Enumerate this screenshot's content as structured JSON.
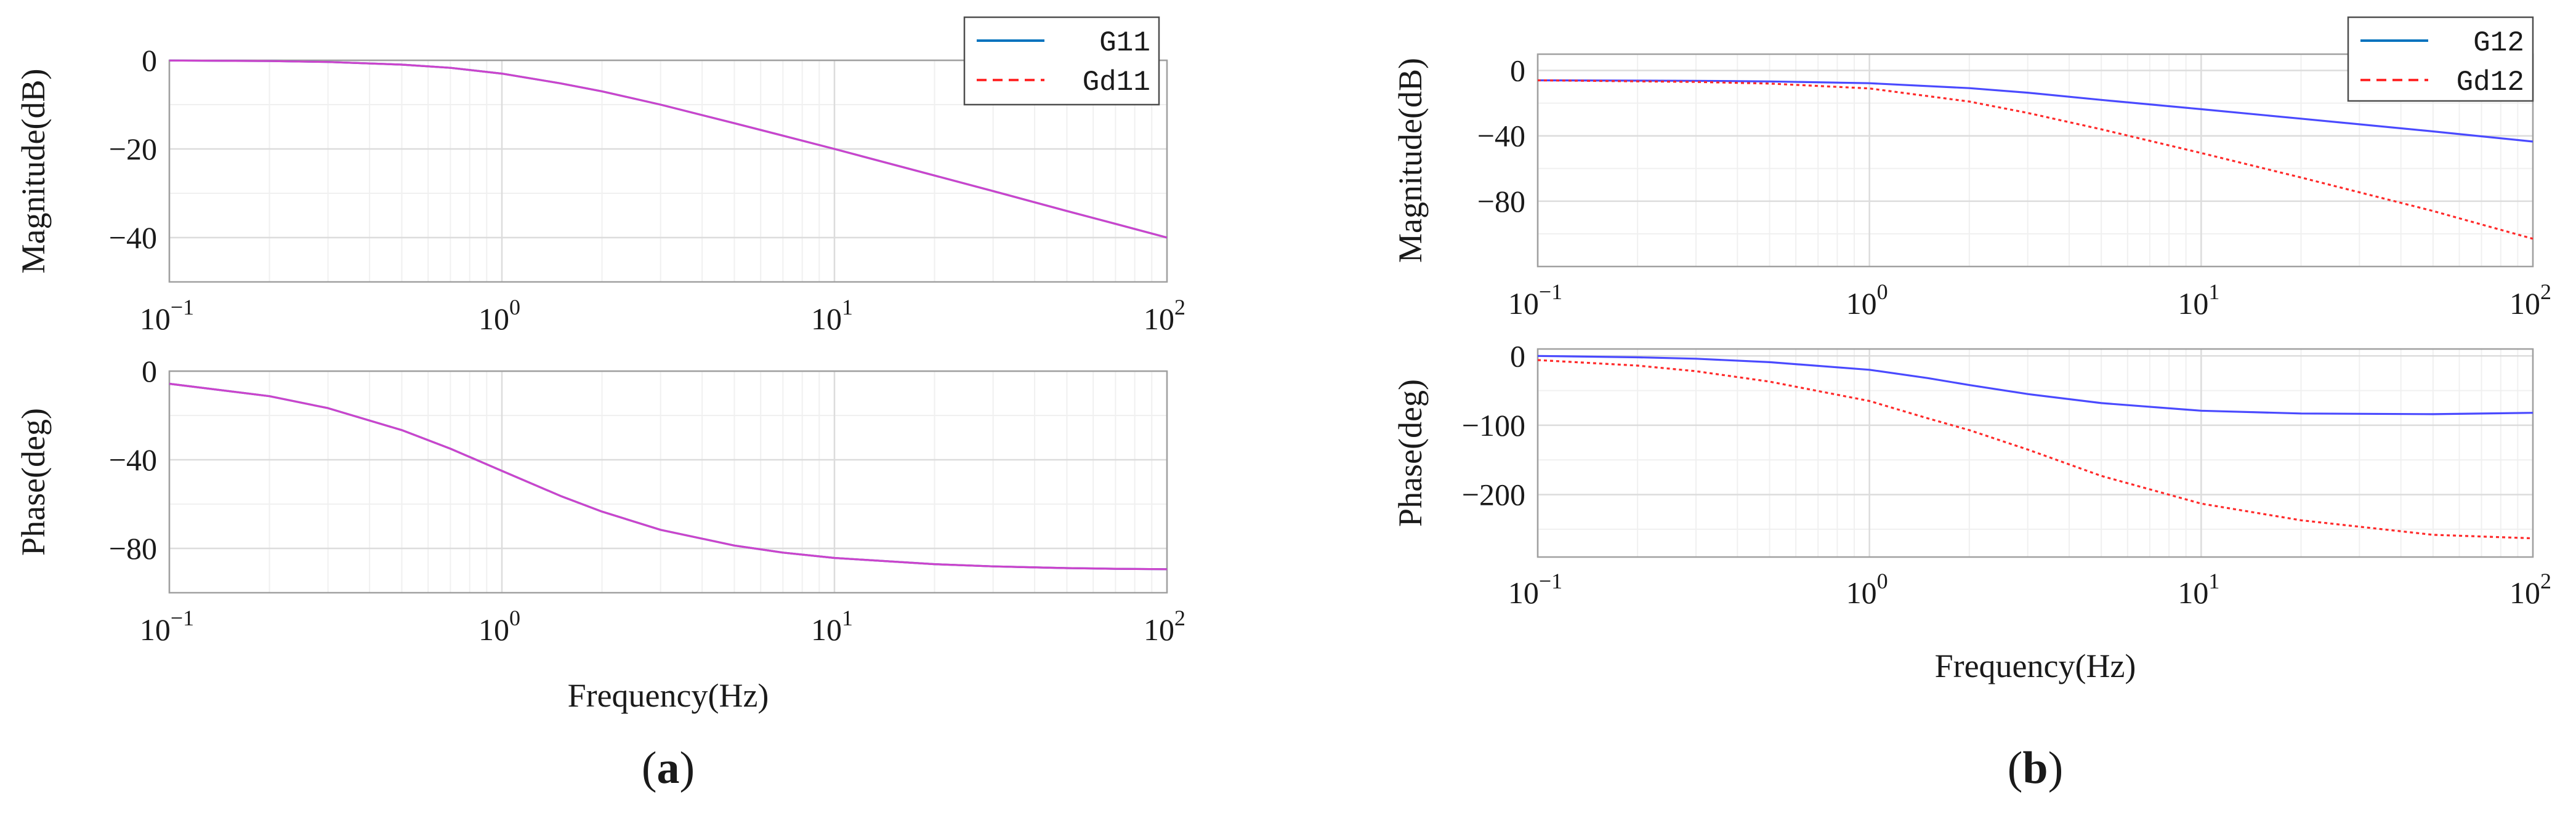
{
  "chart_data": [
    {
      "id": "a",
      "type": "line",
      "caption": {
        "open": "(",
        "letter": "a",
        "close": ")"
      },
      "xlabel": "Frequency(Hz)",
      "xscale": "log",
      "xlim": [
        0.1,
        100
      ],
      "xticks": [
        {
          "base": "10",
          "exp": "−1",
          "value": 0.1
        },
        {
          "base": "10",
          "exp": "0",
          "value": 1
        },
        {
          "base": "10",
          "exp": "1",
          "value": 10
        },
        {
          "base": "10",
          "exp": "2",
          "value": 100
        }
      ],
      "legend": {
        "placement": "top-right",
        "entries": [
          {
            "name": "G11",
            "color": "#0072BD",
            "style": "solid"
          },
          {
            "name": "Gd11",
            "color": "#ff2a2a",
            "style": "dashed"
          }
        ]
      },
      "panels": [
        {
          "id": "magnitude",
          "ylabel": "Magnitude(dB)",
          "ylim": [
            -50,
            0
          ],
          "yticks": [
            {
              "label": "0",
              "value": 0
            },
            {
              "label": "−20",
              "value": -20
            },
            {
              "label": "−40",
              "value": -40
            }
          ],
          "series": [
            {
              "name": "G11",
              "color": "#0072BD",
              "style": "solid",
              "x": [
                0.1,
                0.2,
                0.3,
                0.5,
                0.7,
                1,
                1.5,
                2,
                3,
                5,
                7,
                10,
                20,
                30,
                50,
                70,
                100
              ],
              "y": [
                -0.04,
                -0.17,
                -0.37,
                -0.97,
                -1.7,
                -3,
                -5.2,
                -7,
                -10,
                -14.2,
                -17,
                -20,
                -26,
                -29.5,
                -34,
                -36.9,
                -40
              ]
            },
            {
              "name": "Gd11",
              "color": "#cc44cc",
              "style": "solid",
              "x": [
                0.1,
                0.2,
                0.3,
                0.5,
                0.7,
                1,
                1.5,
                2,
                3,
                5,
                7,
                10,
                20,
                30,
                50,
                70,
                100
              ],
              "y": [
                -0.04,
                -0.17,
                -0.37,
                -0.97,
                -1.7,
                -3,
                -5.2,
                -7,
                -10,
                -14.2,
                -17,
                -20,
                -26,
                -29.5,
                -34,
                -36.9,
                -40
              ]
            }
          ]
        },
        {
          "id": "phase",
          "ylabel": "Phase(deg)",
          "ylim": [
            -100,
            0
          ],
          "yticks": [
            {
              "label": "0",
              "value": 0
            },
            {
              "label": "−40",
              "value": -40
            },
            {
              "label": "−80",
              "value": -80
            }
          ],
          "series": [
            {
              "name": "G11",
              "color": "#0072BD",
              "style": "solid",
              "x": [
                0.1,
                0.2,
                0.3,
                0.5,
                0.7,
                1,
                1.5,
                2,
                3,
                5,
                7,
                10,
                20,
                30,
                50,
                70,
                100
              ],
              "y": [
                -5.7,
                -11.3,
                -16.7,
                -26.6,
                -35,
                -45,
                -56.3,
                -63.4,
                -71.6,
                -78.7,
                -81.9,
                -84.3,
                -87.1,
                -88.1,
                -88.9,
                -89.2,
                -89.4
              ]
            },
            {
              "name": "Gd11",
              "color": "#cc44cc",
              "style": "solid",
              "x": [
                0.1,
                0.2,
                0.3,
                0.5,
                0.7,
                1,
                1.5,
                2,
                3,
                5,
                7,
                10,
                20,
                30,
                50,
                70,
                100
              ],
              "y": [
                -5.7,
                -11.3,
                -16.7,
                -26.6,
                -35,
                -45,
                -56.3,
                -63.4,
                -71.6,
                -78.7,
                -81.9,
                -84.3,
                -87.1,
                -88.1,
                -88.9,
                -89.2,
                -89.4
              ]
            }
          ]
        }
      ]
    },
    {
      "id": "b",
      "type": "line",
      "caption": {
        "open": "(",
        "letter": "b",
        "close": ")"
      },
      "xlabel": "Frequency(Hz)",
      "xscale": "log",
      "xlim": [
        0.1,
        100
      ],
      "xticks": [
        {
          "base": "10",
          "exp": "−1",
          "value": 0.1
        },
        {
          "base": "10",
          "exp": "0",
          "value": 1
        },
        {
          "base": "10",
          "exp": "1",
          "value": 10
        },
        {
          "base": "10",
          "exp": "2",
          "value": 100
        }
      ],
      "legend": {
        "placement": "top-right",
        "entries": [
          {
            "name": "G12",
            "color": "#0072BD",
            "style": "solid"
          },
          {
            "name": "Gd12",
            "color": "#ff2a2a",
            "style": "dashed"
          }
        ]
      },
      "panels": [
        {
          "id": "magnitude",
          "ylabel": "Magnitude(dB)",
          "ylim": [
            -120,
            10
          ],
          "yticks": [
            {
              "label": "0",
              "value": 0
            },
            {
              "label": "−40",
              "value": -40
            },
            {
              "label": "−80",
              "value": -80
            }
          ],
          "series": [
            {
              "name": "G12",
              "color": "#4a4aff",
              "style": "solid",
              "x": [
                0.1,
                0.3,
                0.5,
                1,
                2,
                3,
                5,
                10,
                20,
                50,
                100
              ],
              "y": [
                -6,
                -6.3,
                -6.7,
                -7.8,
                -10.8,
                -13.6,
                -18,
                -23.7,
                -29.5,
                -37.3,
                -43.5
              ]
            },
            {
              "name": "Gd12",
              "color": "#ff2a2a",
              "style": "dotted",
              "x": [
                0.1,
                0.3,
                0.5,
                1,
                2,
                3,
                5,
                10,
                20,
                50,
                100
              ],
              "y": [
                -6,
                -7,
                -8,
                -11,
                -19,
                -26,
                -36,
                -50.5,
                -65.5,
                -86,
                -103
              ]
            }
          ]
        },
        {
          "id": "phase",
          "ylabel": "Phase(deg)",
          "ylim": [
            -290,
            10
          ],
          "yticks": [
            {
              "label": "0",
              "value": 0
            },
            {
              "label": "−100",
              "value": -100
            },
            {
              "label": "−200",
              "value": -200
            }
          ],
          "series": [
            {
              "name": "G12",
              "color": "#4a4aff",
              "style": "solid",
              "x": [
                0.1,
                0.2,
                0.3,
                0.5,
                1,
                1.5,
                2,
                3,
                5,
                10,
                20,
                50,
                100
              ],
              "y": [
                0,
                -2,
                -4,
                -9,
                -20,
                -32,
                -42,
                -55,
                -68,
                -79,
                -83,
                -84,
                -82
              ]
            },
            {
              "name": "Gd12",
              "color": "#ff2a2a",
              "style": "dotted",
              "x": [
                0.1,
                0.2,
                0.3,
                0.5,
                1,
                1.5,
                2,
                3,
                5,
                10,
                20,
                50,
                100
              ],
              "y": [
                -6,
                -14,
                -22,
                -37,
                -65,
                -90,
                -107,
                -135,
                -173,
                -213,
                -237,
                -258,
                -263
              ]
            }
          ]
        }
      ]
    }
  ]
}
